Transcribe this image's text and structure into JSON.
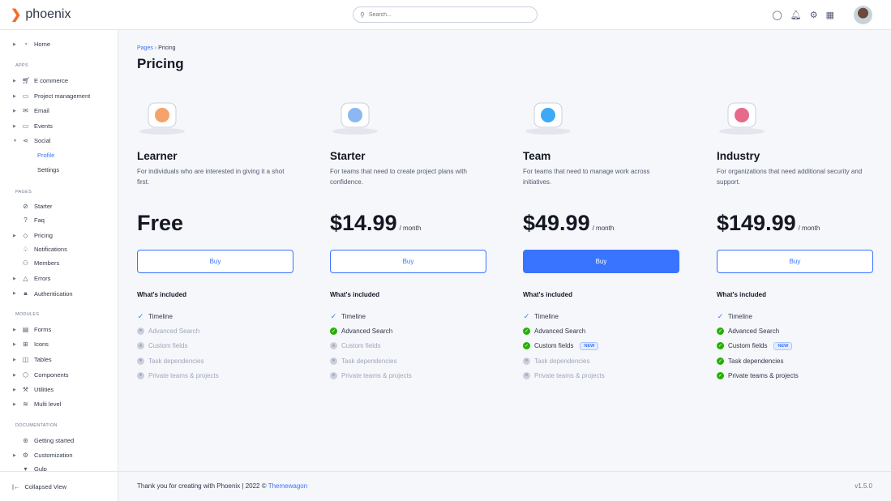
{
  "brand": {
    "name": "phoenix",
    "accent": "#3874ff",
    "logo_color": "#f26b2a"
  },
  "topbar": {
    "search_placeholder": "Search...",
    "icons": [
      "theme-toggle-icon",
      "bell-icon",
      "gear-icon",
      "apps-grid-icon"
    ]
  },
  "sidebar": {
    "items": [
      {
        "type": "item",
        "label": "Home",
        "icon": "pie-chart-icon",
        "caret": true
      },
      {
        "type": "section",
        "label": "APPS"
      },
      {
        "type": "item",
        "label": "E commerce",
        "icon": "cart-icon",
        "caret": true
      },
      {
        "type": "item",
        "label": "Project management",
        "icon": "clipboard-icon",
        "caret": true
      },
      {
        "type": "item",
        "label": "Email",
        "icon": "mail-icon",
        "caret": true
      },
      {
        "type": "item",
        "label": "Events",
        "icon": "clipboard-icon",
        "caret": true
      },
      {
        "type": "item",
        "label": "Social",
        "icon": "share-icon",
        "caret": true,
        "open": true
      },
      {
        "type": "sub",
        "label": "Profile",
        "active": true
      },
      {
        "type": "sub",
        "label": "Settings"
      },
      {
        "type": "section",
        "label": "PAGES"
      },
      {
        "type": "item",
        "label": "Starter",
        "icon": "compass-icon"
      },
      {
        "type": "item",
        "label": "Faq",
        "icon": "help-circle-icon"
      },
      {
        "type": "item",
        "label": "Pricing",
        "icon": "tag-icon",
        "caret": true
      },
      {
        "type": "item",
        "label": "Notifications",
        "icon": "bell-icon"
      },
      {
        "type": "item",
        "label": "Members",
        "icon": "users-icon"
      },
      {
        "type": "item",
        "label": "Errors",
        "icon": "alert-triangle-icon",
        "caret": true
      },
      {
        "type": "item",
        "label": "Authentication",
        "icon": "lock-icon",
        "caret": true
      },
      {
        "type": "section",
        "label": "MODULES"
      },
      {
        "type": "item",
        "label": "Forms",
        "icon": "file-text-icon",
        "caret": true
      },
      {
        "type": "item",
        "label": "Icons",
        "icon": "grid-icon",
        "caret": true
      },
      {
        "type": "item",
        "label": "Tables",
        "icon": "columns-icon",
        "caret": true
      },
      {
        "type": "item",
        "label": "Components",
        "icon": "package-icon",
        "caret": true
      },
      {
        "type": "item",
        "label": "Utilities",
        "icon": "tool-icon",
        "caret": true
      },
      {
        "type": "item",
        "label": "Multi level",
        "icon": "layers-icon",
        "caret": true
      },
      {
        "type": "section",
        "label": "DOCUMENTATION"
      },
      {
        "type": "item",
        "label": "Getting started",
        "icon": "life-buoy-icon"
      },
      {
        "type": "item",
        "label": "Customization",
        "icon": "settings-icon",
        "caret": true
      },
      {
        "type": "item",
        "label": "Gulp",
        "icon": "gulp-icon"
      }
    ],
    "collapse_label": "Collapsed View"
  },
  "breadcrumb": {
    "parent": "Pages",
    "current": "Pricing"
  },
  "page_title": "Pricing",
  "included_label": "What's included",
  "plans": [
    {
      "name": "Learner",
      "desc": "For individuals who are interested in giving it a shot first.",
      "price": "Free",
      "period": "",
      "button": "Buy",
      "primary": false,
      "features": [
        {
          "label": "Timeline",
          "state": "check"
        },
        {
          "label": "Advanced Search",
          "state": "no"
        },
        {
          "label": "Custom fields",
          "state": "no"
        },
        {
          "label": "Task dependencies",
          "state": "no"
        },
        {
          "label": "Private teams & projects",
          "state": "no"
        }
      ]
    },
    {
      "name": "Starter",
      "desc": "For teams that need to create project plans with confidence.",
      "price": "$14.99",
      "period": "/ month",
      "button": "Buy",
      "primary": false,
      "features": [
        {
          "label": "Timeline",
          "state": "check"
        },
        {
          "label": "Advanced Search",
          "state": "yes"
        },
        {
          "label": "Custom fields",
          "state": "no"
        },
        {
          "label": "Task dependencies",
          "state": "no"
        },
        {
          "label": "Private teams & projects",
          "state": "no"
        }
      ]
    },
    {
      "name": "Team",
      "desc": "For teams that need to manage work across initiatives.",
      "price": "$49.99",
      "period": "/ month",
      "button": "Buy",
      "primary": true,
      "features": [
        {
          "label": "Timeline",
          "state": "check"
        },
        {
          "label": "Advanced Search",
          "state": "yes"
        },
        {
          "label": "Custom fields",
          "state": "yes",
          "badge": "NEW"
        },
        {
          "label": "Task dependencies",
          "state": "no"
        },
        {
          "label": "Private teams & projects",
          "state": "no"
        }
      ]
    },
    {
      "name": "Industry",
      "desc": "For organizations that need additional security and support.",
      "price": "$149.99",
      "period": "/ month",
      "button": "Buy",
      "primary": false,
      "features": [
        {
          "label": "Timeline",
          "state": "check"
        },
        {
          "label": "Advanced Search",
          "state": "yes"
        },
        {
          "label": "Custom fields",
          "state": "yes",
          "badge": "NEW"
        },
        {
          "label": "Task dependencies",
          "state": "yes"
        },
        {
          "label": "Private teams & projects",
          "state": "yes"
        }
      ]
    }
  ],
  "footer": {
    "text": "Thank you for creating with Phoenix | 2022 ©",
    "link": "Themewagon",
    "version": "v1.5.0"
  }
}
